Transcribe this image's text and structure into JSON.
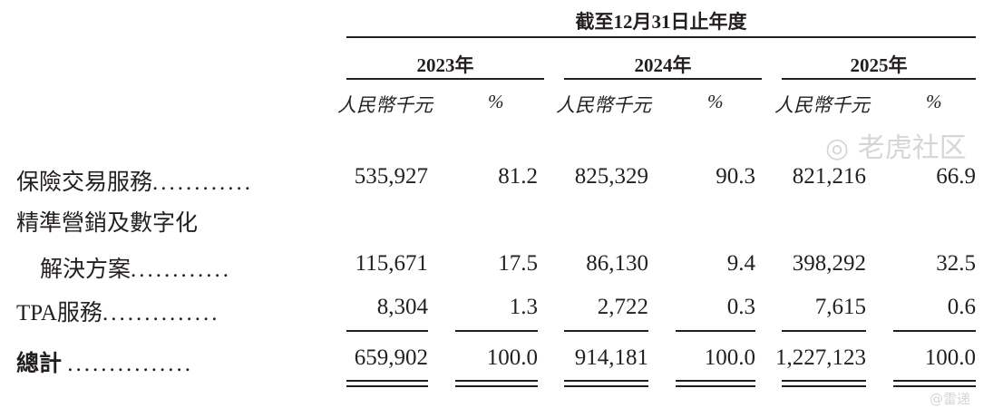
{
  "header": {
    "period": "截至12月31日止年度",
    "years": [
      "2023年",
      "2024年",
      "2025年"
    ],
    "units": {
      "amount": "人民幣千元",
      "percent": "%"
    }
  },
  "rows": [
    {
      "label": "保險交易服務",
      "dots": "............",
      "values": [
        "535,927",
        "81.2",
        "825,329",
        "90.3",
        "821,216",
        "66.9"
      ]
    },
    {
      "label": "精準營銷及數字化",
      "dots": "",
      "values": []
    },
    {
      "label": "解決方案",
      "dots": "............",
      "values": [
        "115,671",
        "17.5",
        "86,130",
        "9.4",
        "398,292",
        "32.5"
      ]
    },
    {
      "label": "TPA服務",
      "dots": "..............",
      "values": [
        "8,304",
        "1.3",
        "2,722",
        "0.3",
        "7,615",
        "0.6"
      ]
    }
  ],
  "total": {
    "label": "總計",
    "dots": "...............",
    "values": [
      "659,902",
      "100.0",
      "914,181",
      "100.0",
      "1,227,123",
      "100.0"
    ]
  },
  "watermark": {
    "text": "老虎社区",
    "handle": "@雷递"
  }
}
